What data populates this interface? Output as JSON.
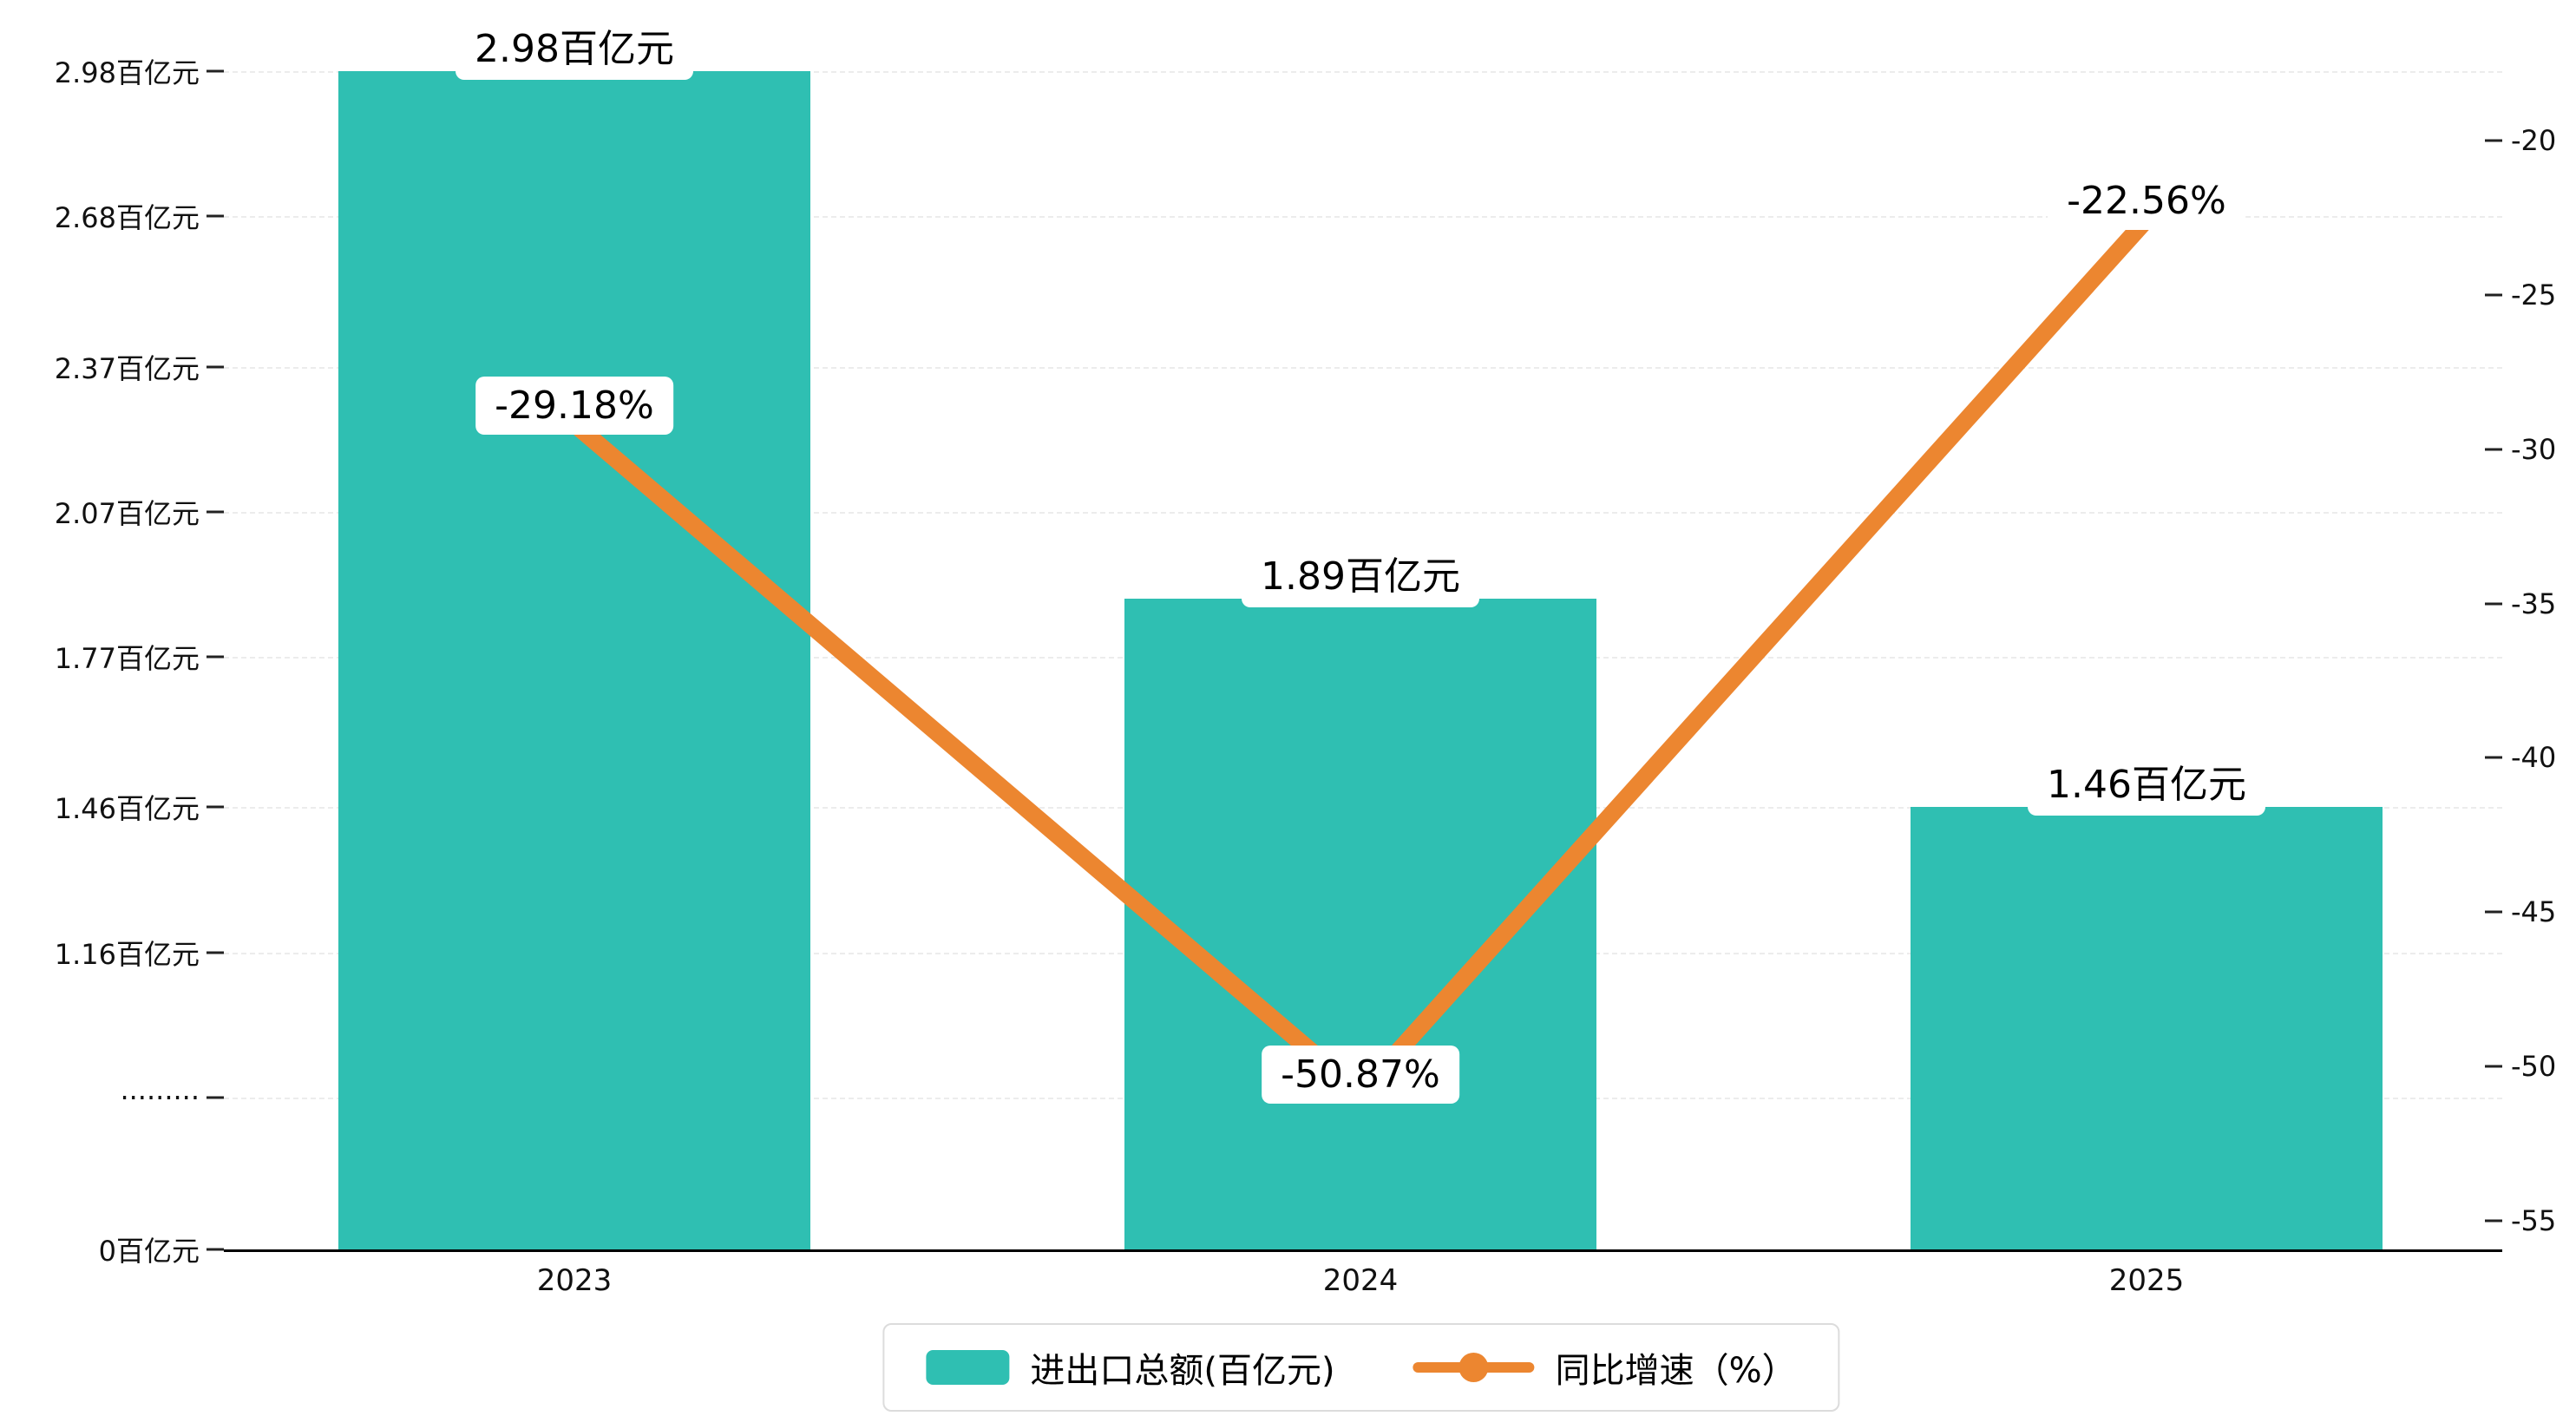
{
  "chart_data": {
    "type": "bar+line",
    "title": "",
    "categories": [
      "2023",
      "2024",
      "2025"
    ],
    "series": [
      {
        "name": "进出口总额(百亿元)",
        "type": "bar",
        "values": [
          2.98,
          1.89,
          1.46
        ],
        "labels": [
          "2.98百亿元",
          "1.89百亿元",
          "1.46百亿元"
        ],
        "color": "#2FBFB2"
      },
      {
        "name": "同比增速（%）",
        "type": "line",
        "values": [
          -29.18,
          -50.87,
          -22.56
        ],
        "labels": [
          "-29.18%",
          "-50.87%",
          "-22.56%"
        ],
        "color": "#EC8630"
      }
    ],
    "left_axis": {
      "unit": "百亿元",
      "ticks": [
        "2.98百亿元",
        "2.68百亿元",
        "2.37百亿元",
        "2.07百亿元",
        "1.77百亿元",
        "1.46百亿元",
        "1.16百亿元",
        "·········",
        "0百亿元"
      ],
      "tick_values": [
        2.98,
        2.68,
        2.37,
        2.07,
        1.77,
        1.46,
        1.16,
        0.86,
        0
      ],
      "broken_axis": true
    },
    "right_axis": {
      "ticks": [
        "-20",
        "-25",
        "-30",
        "-35",
        "-40",
        "-45",
        "-50",
        "-55"
      ],
      "tick_values": [
        -20,
        -25,
        -30,
        -35,
        -40,
        -45,
        -50,
        -55
      ],
      "min": -55,
      "max": -20
    },
    "legend": {
      "position": "bottom",
      "items": [
        "进出口总额(百亿元)",
        "同比增速（%）"
      ]
    },
    "grid": "dashed-horizontal"
  }
}
